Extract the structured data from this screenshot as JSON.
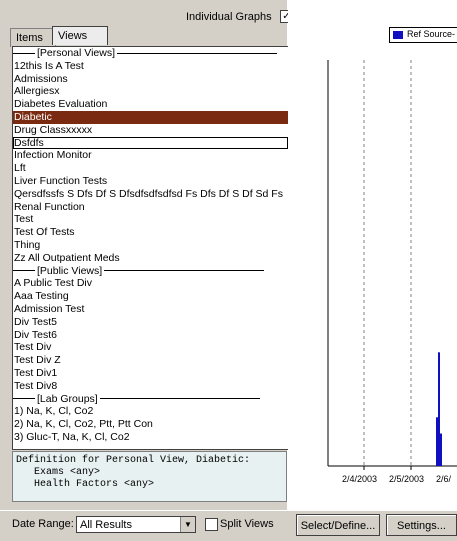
{
  "header": {
    "individual_graphs_label": "Individual Graphs",
    "individual_graphs_checked": "✓"
  },
  "tabs": [
    {
      "label": "Items"
    },
    {
      "label": "Views"
    }
  ],
  "list": {
    "groups": [
      {
        "header": "[Personal Views]",
        "items": [
          "12this Is A Test",
          "Admissions",
          "Allergiesx",
          "Diabetes Evaluation",
          "Diabetic",
          "Drug Classxxxxx",
          "Dsfdfs",
          "Infection Monitor",
          "Lft",
          "Liver Function Tests",
          "Qersdfssfs S Dfs Df S Dfsdfsdfsdfsd Fs Dfs Df S Df Sd Fs",
          "Renal Function",
          "Test",
          "Test Of Tests",
          "Thing",
          "Zz All Outpatient Meds"
        ]
      },
      {
        "header": "[Public Views]",
        "items": [
          "A Public Test Div",
          "Aaa Testing",
          "Admission Test",
          "Div Test5",
          "Div Test6",
          "Test Div",
          "Test Div Z",
          "Test Div1",
          "Test Div8"
        ]
      },
      {
        "header": "[Lab Groups]",
        "items": [
          "1) Na, K, Cl, Co2",
          "2) Na, K, Cl, Co2, Ptt, Ptt Con",
          "3) Gluc-T, Na, K, Cl, Co2"
        ]
      }
    ],
    "selected": "Diabetic",
    "focused": "Dsfdfs"
  },
  "definition": {
    "title": "Definition for Personal View, Diabetic:",
    "lines": [
      "   Exams <any>",
      "   Health Factors <any>"
    ]
  },
  "bottom": {
    "date_range_label": "Date Range:",
    "date_range_value": "All Results",
    "split_views_label": "Split Views",
    "select_define_label": "Select/Define...",
    "settings_label": "Settings..."
  },
  "chart_data": {
    "type": "bar",
    "series": [
      {
        "name": "Ref Source-",
        "color": "#1010c0",
        "values": [
          0,
          0,
          0.12,
          0.28,
          0.08
        ]
      }
    ],
    "categories": [
      "",
      "",
      "",
      "",
      ""
    ],
    "x_tick_labels": [
      "2/4/2003",
      "2/5/2003",
      "2/6/"
    ],
    "ylim": [
      0,
      1
    ]
  }
}
